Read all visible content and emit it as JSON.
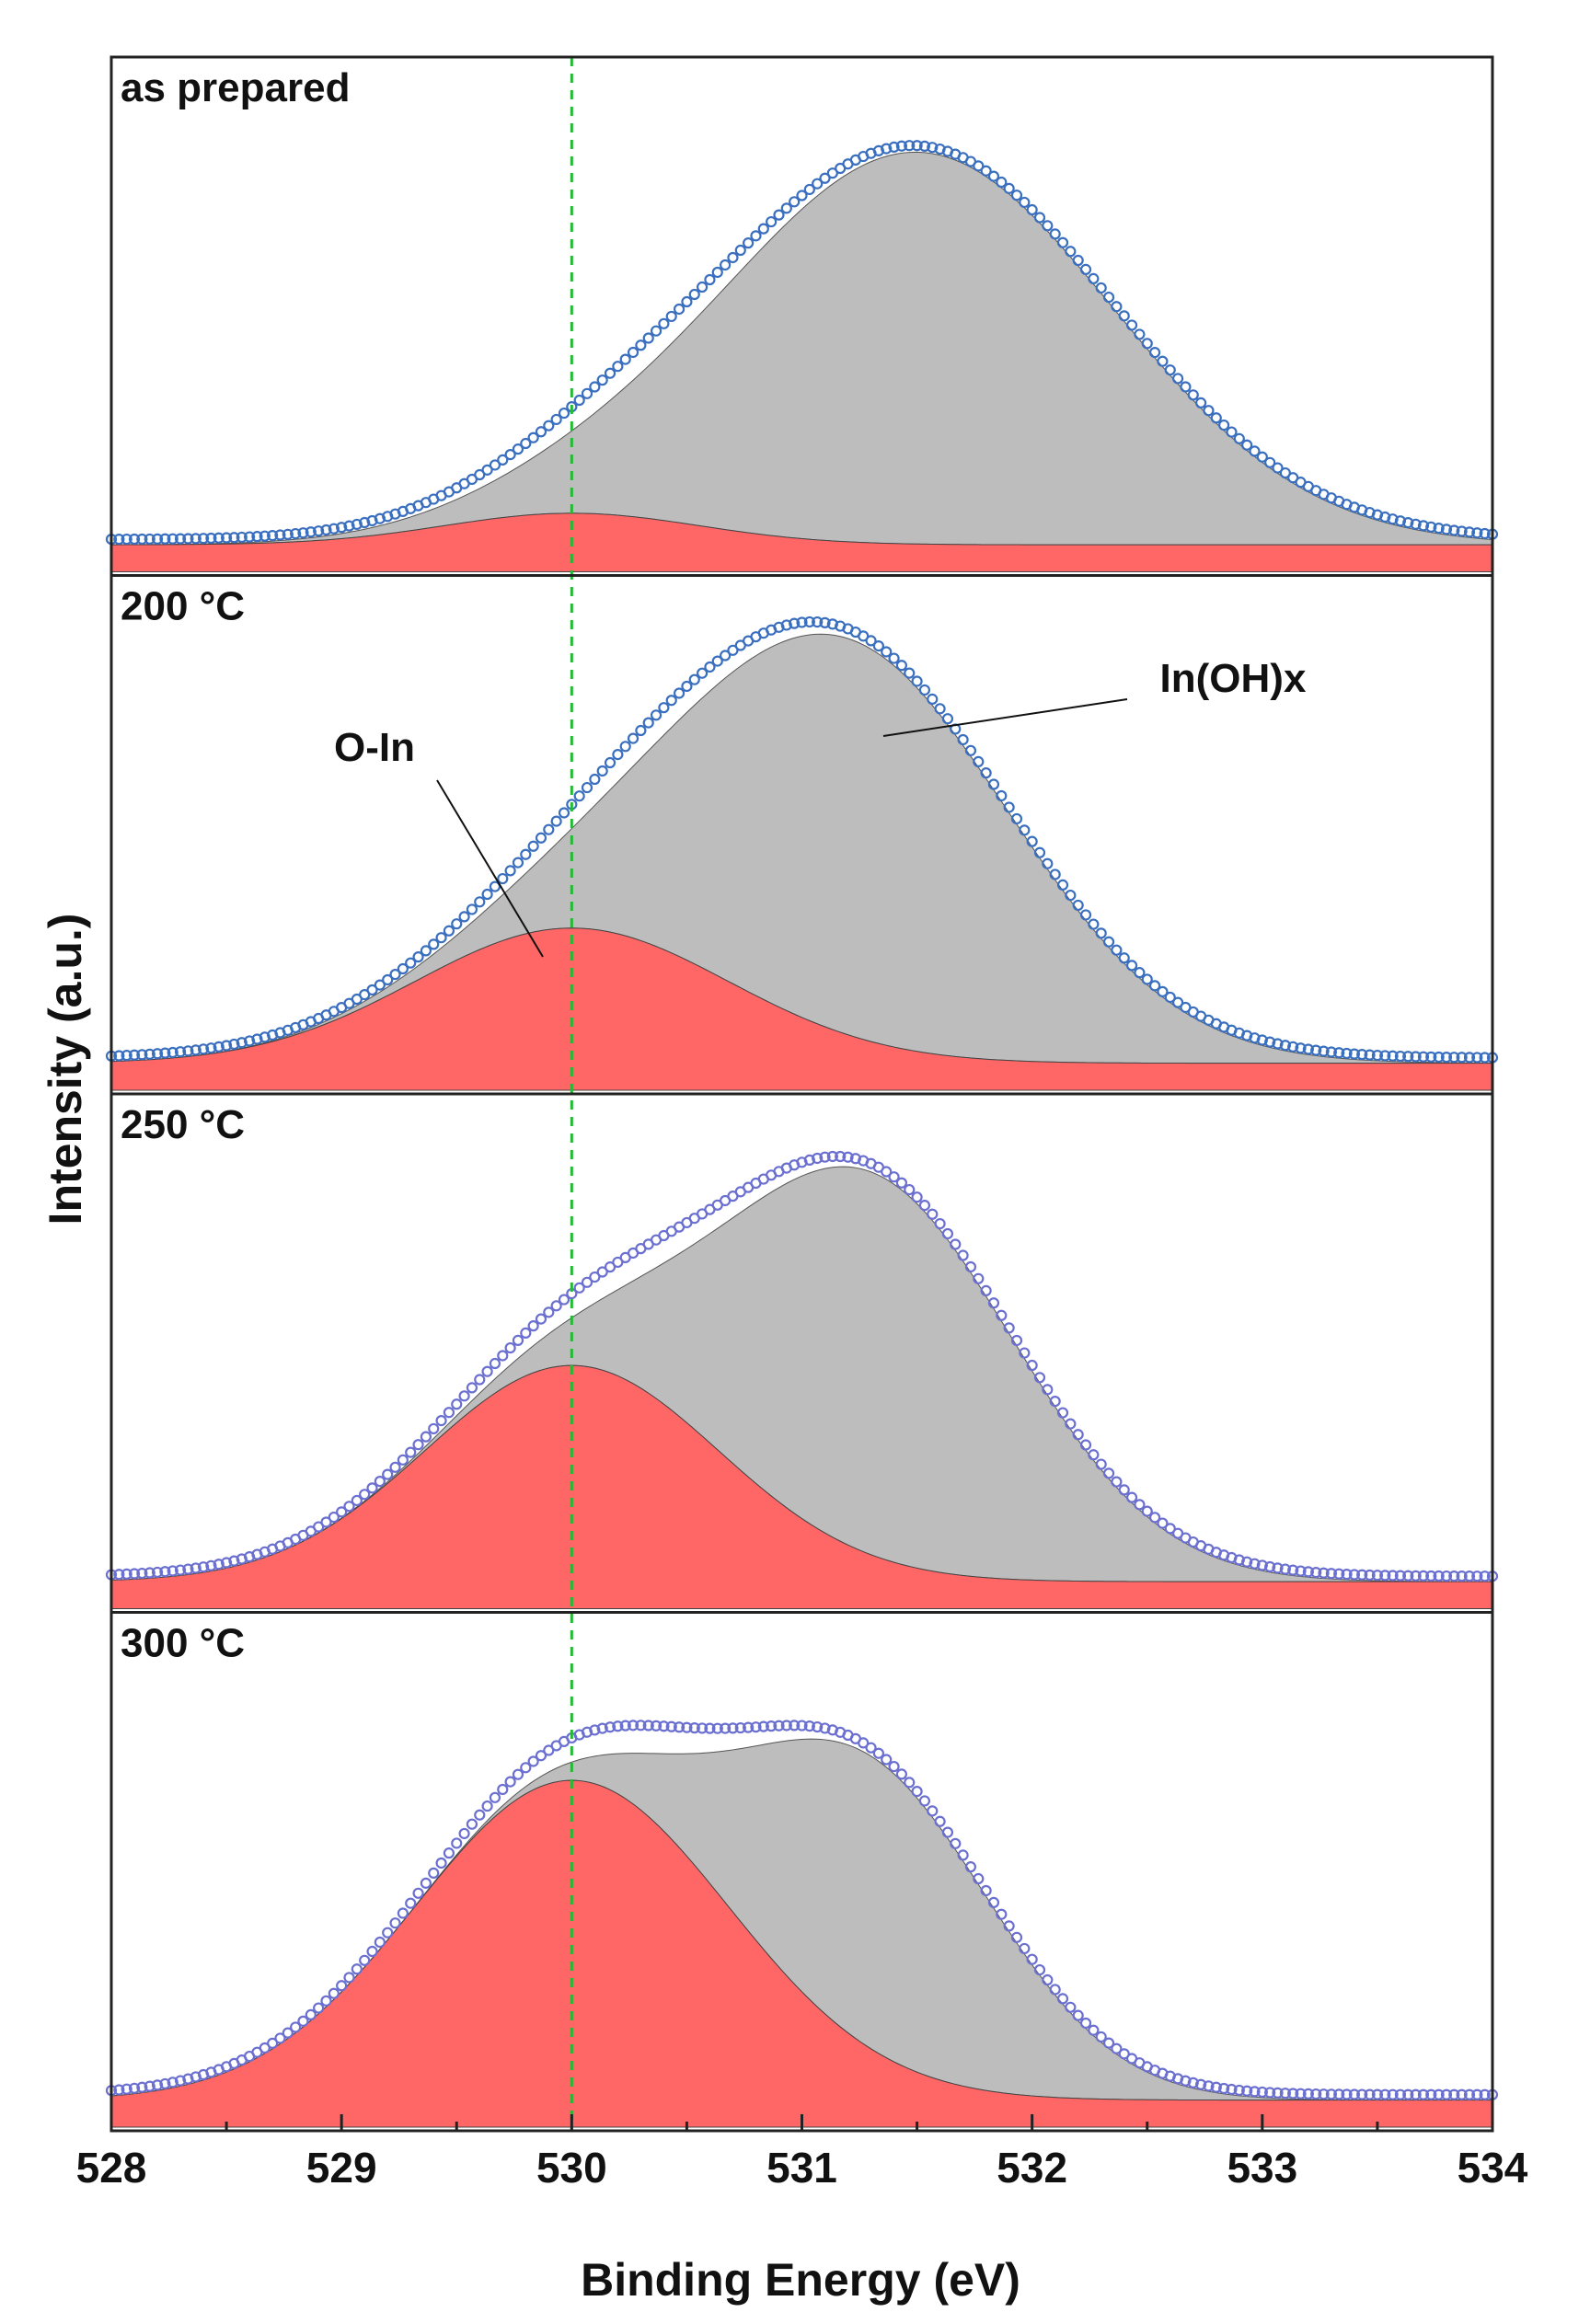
{
  "chart_data": {
    "type": "area",
    "title": "",
    "xlabel": "Binding Energy (eV)",
    "ylabel": "Intensity (a.u.)",
    "xlim": [
      528,
      534
    ],
    "x_ticks": [
      "528",
      "529",
      "530",
      "531",
      "532",
      "533",
      "534"
    ],
    "reference_line": {
      "x": 530.0,
      "style": "green dashed"
    },
    "component_colors": {
      "O-In": "#ff6666",
      "In(OH)x": "#bdbdbd",
      "measured": "#3a6fbf"
    },
    "annotations": [
      {
        "text": "O-In",
        "panel": "200 °C",
        "target": "O-In component"
      },
      {
        "text": "In(OH)x",
        "panel": "200 °C",
        "target": "In(OH)x component"
      }
    ],
    "panels": [
      {
        "label": "as prepared",
        "ylim": [
          0,
          1.0
        ],
        "baseline": 0.06,
        "components": [
          {
            "name": "O-In",
            "center": 530.0,
            "height": 0.07,
            "fwhm": 1.3
          },
          {
            "name": "In(OH)x",
            "center": 531.5,
            "height": 0.87,
            "fwhm": 2.0
          }
        ],
        "measured_color": "#3a6fbf"
      },
      {
        "label": "200 °C",
        "ylim": [
          0,
          1.0
        ],
        "baseline": 0.06,
        "components": [
          {
            "name": "O-In",
            "center": 530.0,
            "height": 0.3,
            "fwhm": 1.6
          },
          {
            "name": "In(OH)x",
            "center": 531.2,
            "height": 0.88,
            "fwhm": 1.7
          }
        ],
        "measured_color": "#3a6fbf"
      },
      {
        "label": "250 °C",
        "ylim": [
          0,
          1.0
        ],
        "baseline": 0.06,
        "components": [
          {
            "name": "O-In",
            "center": 530.0,
            "height": 0.48,
            "fwhm": 1.5
          },
          {
            "name": "In(OH)x",
            "center": 531.3,
            "height": 0.85,
            "fwhm": 1.5
          }
        ],
        "measured_color": "#6a6fd0"
      },
      {
        "label": "300 °C",
        "ylim": [
          0,
          1.0
        ],
        "baseline": 0.06,
        "components": [
          {
            "name": "O-In",
            "center": 530.0,
            "height": 0.71,
            "fwhm": 1.6
          },
          {
            "name": "In(OH)x",
            "center": 531.3,
            "height": 0.65,
            "fwhm": 1.3
          }
        ],
        "measured_color": "#6a6fd0"
      }
    ]
  }
}
